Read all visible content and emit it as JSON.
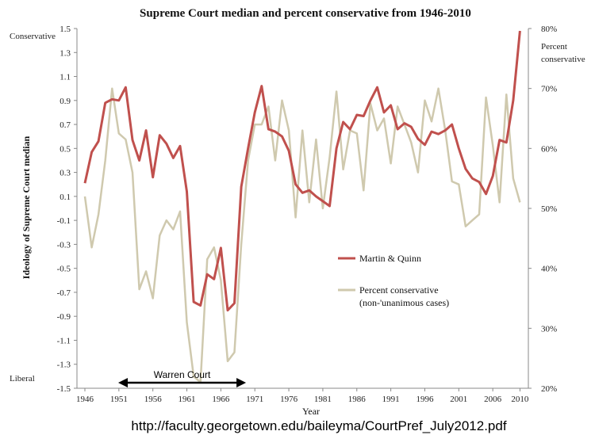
{
  "chart_data": {
    "type": "line",
    "title": "Supreme Court median and percent conservative from 1946-2010",
    "xlabel": "Year",
    "ylabel": "Ideology of Supreme Court median",
    "y2label": [
      "Percent",
      "conservative"
    ],
    "ylim": [
      -1.5,
      1.5
    ],
    "y2lim": [
      20,
      80
    ],
    "xlim": [
      1946,
      2011
    ],
    "x_ticks": [
      "1946",
      "1951",
      "1956",
      "1961",
      "1966",
      "1971",
      "1976",
      "1981",
      "1986",
      "1991",
      "1996",
      "2001",
      "2006",
      "2010"
    ],
    "y_ticks": [
      "1.5",
      "1.3",
      "1.1",
      "0.9",
      "0.7",
      "0.5",
      "0.3",
      "0.1",
      "-0.1",
      "-0.3",
      "-0.5",
      "-0.7",
      "-0.9",
      "-1.1",
      "-1.3",
      "-1.5"
    ],
    "y2_ticks": [
      "80%",
      "70%",
      "60%",
      "50%",
      "40%",
      "30%",
      "20%"
    ],
    "y_top_label": "Conservative",
    "y_bottom_label": "Liberal",
    "grid": false,
    "legend_position": "center-right",
    "series": [
      {
        "name": "Martin & Quinn",
        "color": "#c0504d",
        "axis": "left",
        "x": [
          1946,
          1947,
          1948,
          1949,
          1950,
          1951,
          1952,
          1953,
          1954,
          1955,
          1956,
          1957,
          1958,
          1959,
          1960,
          1961,
          1962,
          1963,
          1964,
          1965,
          1966,
          1967,
          1968,
          1969,
          1970,
          1971,
          1972,
          1973,
          1974,
          1975,
          1976,
          1977,
          1978,
          1979,
          1980,
          1981,
          1982,
          1983,
          1984,
          1985,
          1986,
          1987,
          1988,
          1989,
          1990,
          1991,
          1992,
          1993,
          1994,
          1995,
          1996,
          1997,
          1998,
          1999,
          2000,
          2001,
          2002,
          2003,
          2004,
          2005,
          2006,
          2007,
          2008,
          2009,
          2010
        ],
        "values": [
          0.21,
          0.47,
          0.56,
          0.88,
          0.91,
          0.9,
          1.01,
          0.57,
          0.4,
          0.65,
          0.26,
          0.61,
          0.54,
          0.42,
          0.52,
          0.14,
          -0.78,
          -0.81,
          -0.55,
          -0.59,
          -0.33,
          -0.85,
          -0.79,
          0.18,
          0.5,
          0.8,
          1.02,
          0.66,
          0.64,
          0.6,
          0.48,
          0.2,
          0.13,
          0.15,
          0.1,
          0.06,
          0.02,
          0.5,
          0.72,
          0.66,
          0.78,
          0.77,
          0.9,
          1.01,
          0.8,
          0.86,
          0.66,
          0.71,
          0.68,
          0.58,
          0.53,
          0.64,
          0.62,
          0.65,
          0.7,
          0.5,
          0.33,
          0.25,
          0.22,
          0.12,
          0.27,
          0.57,
          0.55,
          0.9,
          1.48
        ]
      },
      {
        "name": "Percent conservative",
        "name_line2": "(non-'unanimous cases)",
        "color": "#cfc9ae",
        "axis": "right",
        "x": [
          1946,
          1947,
          1948,
          1949,
          1950,
          1951,
          1952,
          1953,
          1954,
          1955,
          1956,
          1957,
          1958,
          1959,
          1960,
          1961,
          1962,
          1963,
          1964,
          1965,
          1966,
          1967,
          1968,
          1969,
          1970,
          1971,
          1972,
          1973,
          1974,
          1975,
          1976,
          1977,
          1978,
          1979,
          1980,
          1981,
          1982,
          1983,
          1984,
          1985,
          1986,
          1987,
          1988,
          1989,
          1990,
          1991,
          1992,
          1993,
          1994,
          1995,
          1996,
          1997,
          1998,
          1999,
          2000,
          2001,
          2002,
          2003,
          2004,
          2005,
          2006,
          2007,
          2008,
          2009,
          2010
        ],
        "values": [
          52,
          43.5,
          49,
          58,
          70,
          62.5,
          61.5,
          56,
          36.5,
          39.5,
          35,
          45.5,
          48,
          46.5,
          49.5,
          31,
          22,
          21,
          41.5,
          43.5,
          38,
          24.5,
          26,
          44,
          58,
          64,
          64,
          67,
          58,
          68,
          63,
          48.5,
          63,
          51,
          61.5,
          50,
          58.5,
          69.5,
          56.5,
          63,
          62.5,
          53,
          67.5,
          63,
          65,
          57.5,
          67,
          64,
          61,
          56,
          68,
          64.5,
          70,
          63,
          54.5,
          54,
          47,
          48,
          49,
          68.5,
          60.5,
          51,
          69,
          55,
          51
        ]
      }
    ],
    "annotations": {
      "warren_court": {
        "label": "Warren Court",
        "start": 1953,
        "end": 1969
      }
    },
    "footer_url": "http://faculty.georgetown.edu/baileyma/CourtPref_July2012.pdf"
  }
}
